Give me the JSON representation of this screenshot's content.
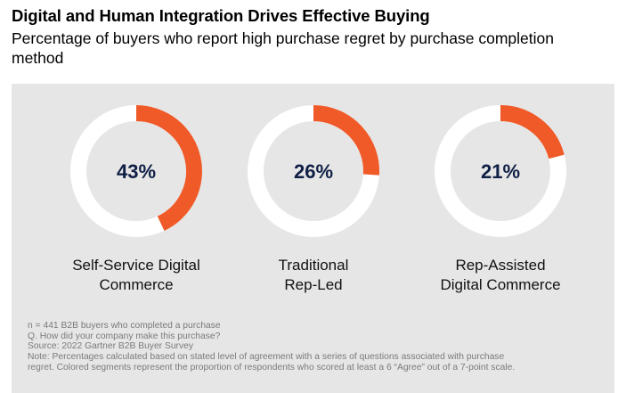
{
  "header": {
    "title": "Digital and Human Integration Drives Effective Buying",
    "subtitle": "Percentage of buyers who report high purchase regret by purchase completion method"
  },
  "colors": {
    "accent": "#f05a28",
    "ring": "#ffffff",
    "panel": "#e6e6e6",
    "value_text": "#0f1f45"
  },
  "chart_data": {
    "type": "pie",
    "title": "Digital and Human Integration Drives Effective Buying",
    "subtitle": "Percentage of buyers who report high purchase regret by purchase completion method",
    "unit": "%",
    "items": [
      {
        "label_lines": [
          "Self-Service Digital",
          "Commerce"
        ],
        "value": 43,
        "display": "43%"
      },
      {
        "label_lines": [
          "Traditional",
          "Rep-Led"
        ],
        "value": 26,
        "display": "26%"
      },
      {
        "label_lines": [
          "Rep-Assisted",
          "Digital Commerce"
        ],
        "value": 21,
        "display": "21%"
      }
    ]
  },
  "notes": [
    "n = 441 B2B buyers who completed a purchase",
    "Q. How did your company make this purchase?",
    "Source: 2022 Gartner B2B Buyer Survey",
    "Note: Percentages calculated based on stated level of agreement with a series of questions associated with purchase",
    "regret. Colored segments represent the proportion of respondents who scored at least a 6 “Agree” out of a 7-point scale."
  ]
}
